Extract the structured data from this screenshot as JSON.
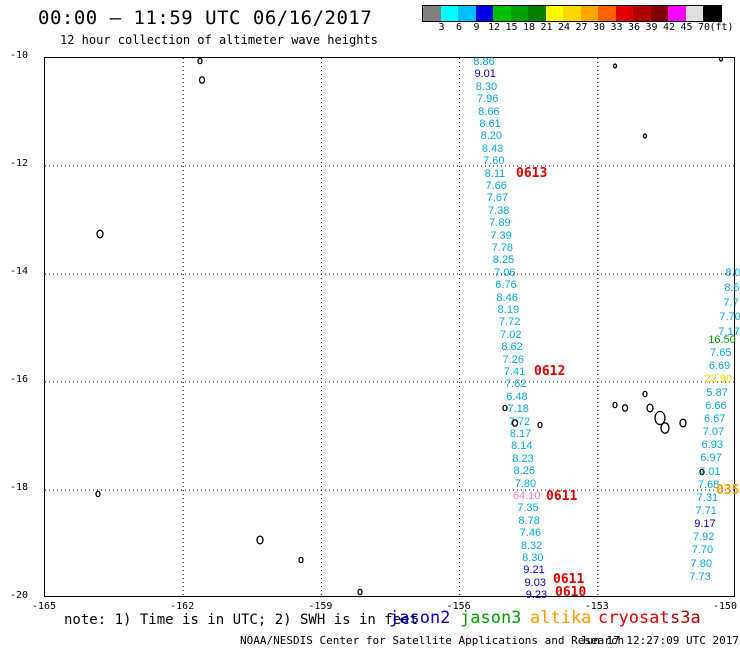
{
  "title": "00:00 — 11:59 UTC 06/16/2017",
  "subtitle": "12 hour collection of altimeter wave heights",
  "legend": {
    "colors": [
      "#808080",
      "#00ffff",
      "#00bfff",
      "#0000e6",
      "#00c000",
      "#00a000",
      "#008000",
      "#ffff00",
      "#ffd700",
      "#ffa500",
      "#ff6000",
      "#e00000",
      "#b00000",
      "#800000",
      "#ff00ff",
      "#e0e0e0",
      "#000000"
    ],
    "labels": [
      "3",
      "6",
      "9",
      "12",
      "15",
      "18",
      "21",
      "24",
      "27",
      "30",
      "33",
      "36",
      "39",
      "42",
      "45",
      "70",
      "(ft)"
    ]
  },
  "axes": {
    "x_ticks": [
      "-165",
      "-162",
      "-159",
      "-156",
      "-153",
      "-150"
    ],
    "y_ticks": [
      "-10",
      "-12",
      "-14",
      "-16",
      "-18",
      "-20"
    ]
  },
  "tracks": [
    {
      "name": "track-left",
      "color": "#00aadd",
      "values": [
        [
          "8.86",
          "#00aadd"
        ],
        [
          "9.01",
          "#0000cc"
        ],
        [
          "8.30",
          "#00aadd"
        ],
        [
          "7.96",
          "#00aadd"
        ],
        [
          "8.66",
          "#00aadd"
        ],
        [
          "8.61",
          "#00aadd"
        ],
        [
          "8.20",
          "#00aadd"
        ],
        [
          "8.43",
          "#00aadd"
        ],
        [
          "7.60",
          "#00aadd"
        ],
        [
          "8.11",
          "#00aadd"
        ],
        [
          "7.66",
          "#00aadd"
        ],
        [
          "7.67",
          "#00aadd"
        ],
        [
          "7.38",
          "#00aadd"
        ],
        [
          "7.89",
          "#00aadd"
        ],
        [
          "7.39",
          "#00aadd"
        ],
        [
          "7.78",
          "#00aadd"
        ],
        [
          "8.25",
          "#00aadd"
        ],
        [
          "7.06",
          "#00aadd"
        ],
        [
          "6.76",
          "#00aadd"
        ],
        [
          "8.46",
          "#00aadd"
        ],
        [
          "8.19",
          "#00aadd"
        ],
        [
          "7.72",
          "#00aadd"
        ],
        [
          "7.02",
          "#00aadd"
        ],
        [
          "8.62",
          "#00aadd"
        ],
        [
          "7.26",
          "#00aadd"
        ],
        [
          "7.41",
          "#00aadd"
        ],
        [
          "7.62",
          "#00aadd"
        ],
        [
          "6.48",
          "#00aadd"
        ],
        [
          "7.18",
          "#00aadd"
        ],
        [
          "7.72",
          "#00aadd"
        ],
        [
          "8.17",
          "#00aadd"
        ],
        [
          "8.14",
          "#00aadd"
        ],
        [
          "8.23",
          "#00aadd"
        ],
        [
          "8.26",
          "#00aadd"
        ],
        [
          "7.80",
          "#00aadd"
        ],
        [
          "64.10",
          "#ff80c0"
        ],
        [
          "7.35",
          "#00aadd"
        ],
        [
          "8.78",
          "#00aadd"
        ],
        [
          "7.46",
          "#00aadd"
        ],
        [
          "8.32",
          "#00aadd"
        ],
        [
          "8.30",
          "#00aadd"
        ],
        [
          "9.21",
          "#0000cc"
        ],
        [
          "9.03",
          "#0000cc"
        ],
        [
          "9.23",
          "#0000cc"
        ]
      ]
    },
    {
      "name": "track-right",
      "color": "#00aadd",
      "values": [
        [
          "16.50",
          "#00a000"
        ],
        [
          "7.65",
          "#00aadd"
        ],
        [
          "6.69",
          "#00aadd"
        ],
        [
          "22.90",
          "#ffd700"
        ],
        [
          "5.87",
          "#00aadd"
        ],
        [
          "6.66",
          "#00aadd"
        ],
        [
          "6.67",
          "#00aadd"
        ],
        [
          "7.07",
          "#00aadd"
        ],
        [
          "6.93",
          "#00aadd"
        ],
        [
          "6.97",
          "#00aadd"
        ],
        [
          "7.01",
          "#00aadd"
        ],
        [
          "7.68",
          "#00aadd"
        ],
        [
          "7.31",
          "#00aadd"
        ],
        [
          "7.71",
          "#00aadd"
        ],
        [
          "9.17",
          "#0000cc"
        ],
        [
          "7.92",
          "#00aadd"
        ],
        [
          "7.70",
          "#00aadd"
        ],
        [
          "7.80",
          "#00aadd"
        ],
        [
          "7.73",
          "#00aadd"
        ]
      ]
    },
    {
      "name": "track-edge",
      "color": "#00aadd",
      "values": [
        [
          "8.0",
          "#00aadd"
        ],
        [
          "8.5",
          "#00aadd"
        ],
        [
          "7.7",
          "#00aadd"
        ],
        [
          "7.70",
          "#00aadd"
        ],
        [
          "7.17",
          "#00aadd"
        ]
      ]
    }
  ],
  "date_labels": [
    "0613",
    "0612",
    "0611",
    "0611",
    "0610",
    "035"
  ],
  "note": "note: 1) Time is in UTC; 2) SWH is in feet",
  "satellites": [
    {
      "name": "jason2",
      "color": "#0000cc"
    },
    {
      "name": "jason3",
      "color": "#00a000"
    },
    {
      "name": "altika",
      "color": "#ff9900"
    },
    {
      "name": "cryosat",
      "color": "#e00000"
    },
    {
      "name": "s3a",
      "color": "#b00000"
    }
  ],
  "credit": "NOAA/NESDIS Center for Satellite Applications and Research",
  "timestamp": "Jun 17 12:27:09 UTC 2017"
}
